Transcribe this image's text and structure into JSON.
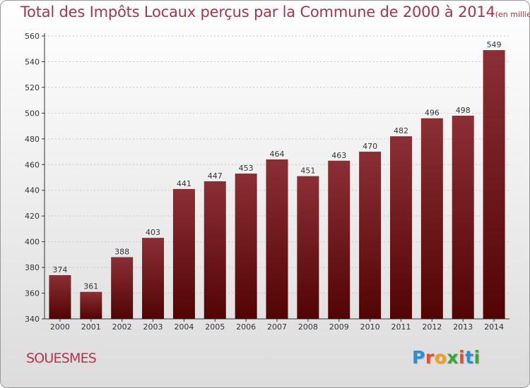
{
  "title": "Total des Impôts Locaux perçus par la Commune de 2000 à 2014",
  "unit_label": "(en milliers d'€)",
  "commune_name": "SOUESMES",
  "logo_text": "Proxiti",
  "colors": {
    "title": "#a4364a",
    "bar_top": "#8b2f35",
    "bar_bottom": "#520404",
    "commune": "#b0354d"
  },
  "chart_data": {
    "type": "bar",
    "title": "Total des Impôts Locaux perçus par la Commune de 2000 à 2014",
    "subtitle": "(en milliers d'€)",
    "categories": [
      "2000",
      "2001",
      "2002",
      "2003",
      "2004",
      "2005",
      "2006",
      "2007",
      "2008",
      "2009",
      "2010",
      "2011",
      "2012",
      "2013",
      "2014"
    ],
    "values": [
      374,
      361,
      388,
      403,
      441,
      447,
      453,
      464,
      451,
      463,
      470,
      482,
      496,
      498,
      549
    ],
    "ylim": [
      340,
      560
    ],
    "yticks": [
      340,
      360,
      380,
      400,
      420,
      440,
      460,
      480,
      500,
      520,
      540,
      560
    ],
    "grid": true,
    "data_labels": true
  }
}
